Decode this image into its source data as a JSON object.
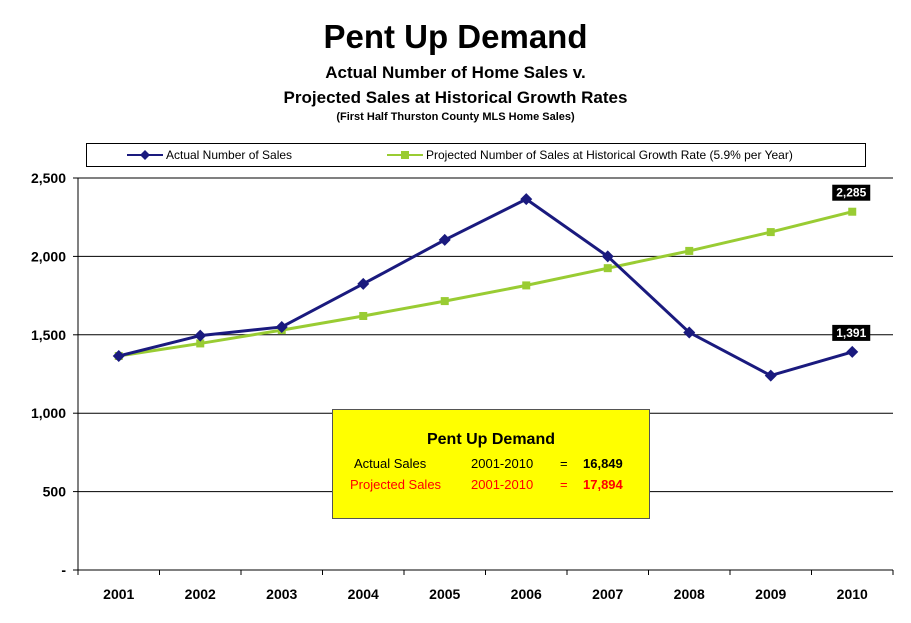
{
  "title": "Pent Up Demand",
  "subtitle_line1": "Actual Number of Home Sales v.",
  "subtitle_line2": "Projected Sales at Historical Growth Rates",
  "note": "(First Half Thurston County MLS Home Sales)",
  "colors": {
    "actual": "#1a1a7e",
    "projected": "#99cc33",
    "callout_bg": "#ffff00",
    "projected_text": "#ff0000"
  },
  "legend": {
    "actual": "Actual Number of Sales",
    "projected": "Projected Number of Sales at Historical Growth Rate (5.9% per Year)"
  },
  "callout": {
    "title": "Pent Up Demand",
    "actual_label": "Actual Sales",
    "actual_range": "2001-2010",
    "actual_eq": "=",
    "actual_value": "16,849",
    "projected_label": "Projected Sales",
    "projected_range": "2001-2010",
    "projected_eq": "=",
    "projected_value": "17,894"
  },
  "chart_data": {
    "type": "line",
    "title": "Pent Up Demand",
    "xlabel": "",
    "ylabel": "",
    "ylim": [
      0,
      2500
    ],
    "yticks": [
      0,
      500,
      1000,
      1500,
      2000,
      2500
    ],
    "ytick_labels": [
      "-",
      "500",
      "1,000",
      "1,500",
      "2,000",
      "2,500"
    ],
    "grid": true,
    "legend_position": "top",
    "categories": [
      "2001",
      "2002",
      "2003",
      "2004",
      "2005",
      "2006",
      "2007",
      "2008",
      "2009",
      "2010"
    ],
    "series": [
      {
        "name": "Actual Number of Sales",
        "marker": "diamond",
        "values": [
          1365,
          1495,
          1550,
          1825,
          2105,
          2365,
          2000,
          1515,
          1240,
          1391
        ],
        "end_label": "1,391"
      },
      {
        "name": "Projected Number of Sales at Historical Growth Rate (5.9% per Year)",
        "marker": "square",
        "values": [
          1365,
          1445,
          1530,
          1620,
          1715,
          1815,
          1925,
          2035,
          2155,
          2285
        ],
        "end_label": "2,285"
      }
    ]
  }
}
